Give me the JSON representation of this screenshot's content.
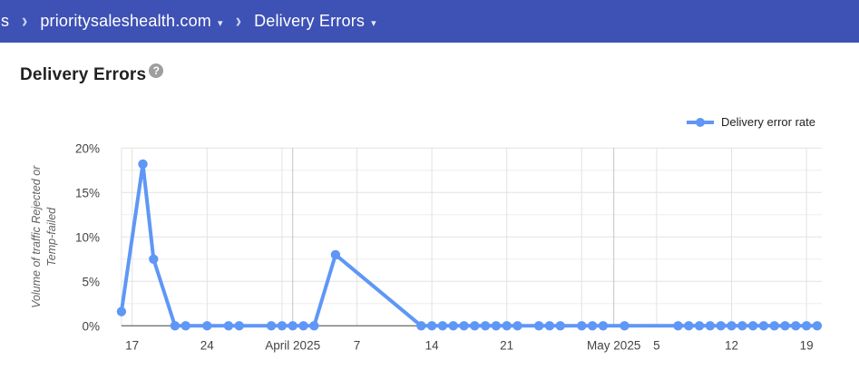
{
  "header": {
    "bg_color": "#3e51b5",
    "truncated_crumb": "s",
    "separator": "›",
    "domain_crumb": "prioritysaleshealth.com",
    "page_crumb": "Delivery Errors",
    "caret": "▾"
  },
  "title": {
    "text": "Delivery Errors",
    "help_icon": "?"
  },
  "legend": {
    "label": "Delivery error rate",
    "color": "#5e97f6"
  },
  "chart_data": {
    "type": "line",
    "title": "Delivery Errors",
    "series_name": "Delivery error rate",
    "line_color": "#5e97f6",
    "ylabel": "Volume of traffic Rejected or Temp-failed",
    "ylabel_lines": [
      "Volume of traffic Rejected or",
      "Temp-failed"
    ],
    "ylim": [
      0,
      20
    ],
    "y_major_step": 5,
    "y_minor_step": 2.5,
    "yticks": [
      "0%",
      "5%",
      "10%",
      "15%",
      "20%"
    ],
    "grid": true,
    "legend_position": "top-right",
    "x_range": [
      "2025-03-16",
      "2025-05-21"
    ],
    "xticks": [
      {
        "date": "2025-03-17",
        "label": "17",
        "month": false
      },
      {
        "date": "2025-03-24",
        "label": "24",
        "month": false
      },
      {
        "date": "2025-03-31",
        "label": "",
        "month": false
      },
      {
        "date": "2025-04-01",
        "label": "April 2025",
        "month": true
      },
      {
        "date": "2025-04-07",
        "label": "7",
        "month": false
      },
      {
        "date": "2025-04-14",
        "label": "14",
        "month": false
      },
      {
        "date": "2025-04-21",
        "label": "21",
        "month": false
      },
      {
        "date": "2025-04-28",
        "label": "",
        "month": false
      },
      {
        "date": "2025-05-01",
        "label": "May 2025",
        "month": true
      },
      {
        "date": "2025-05-05",
        "label": "5",
        "month": false
      },
      {
        "date": "2025-05-12",
        "label": "12",
        "month": false
      },
      {
        "date": "2025-05-19",
        "label": "19",
        "month": false
      }
    ],
    "points": [
      [
        "2025-03-16",
        1.6
      ],
      [
        "2025-03-18",
        18.2
      ],
      [
        "2025-03-19",
        7.5
      ],
      [
        "2025-03-21",
        0
      ],
      [
        "2025-03-22",
        0
      ],
      [
        "2025-03-24",
        0
      ],
      [
        "2025-03-26",
        0
      ],
      [
        "2025-03-27",
        0
      ],
      [
        "2025-03-30",
        0
      ],
      [
        "2025-03-31",
        0
      ],
      [
        "2025-04-01",
        0
      ],
      [
        "2025-04-02",
        0
      ],
      [
        "2025-04-03",
        0
      ],
      [
        "2025-04-05",
        8
      ],
      [
        "2025-04-13",
        0
      ],
      [
        "2025-04-14",
        0
      ],
      [
        "2025-04-15",
        0
      ],
      [
        "2025-04-16",
        0
      ],
      [
        "2025-04-17",
        0
      ],
      [
        "2025-04-18",
        0
      ],
      [
        "2025-04-19",
        0
      ],
      [
        "2025-04-20",
        0
      ],
      [
        "2025-04-21",
        0
      ],
      [
        "2025-04-22",
        0
      ],
      [
        "2025-04-24",
        0
      ],
      [
        "2025-04-25",
        0
      ],
      [
        "2025-04-26",
        0
      ],
      [
        "2025-04-28",
        0
      ],
      [
        "2025-04-29",
        0
      ],
      [
        "2025-04-30",
        0
      ],
      [
        "2025-05-02",
        0
      ],
      [
        "2025-05-07",
        0
      ],
      [
        "2025-05-08",
        0
      ],
      [
        "2025-05-09",
        0
      ],
      [
        "2025-05-10",
        0
      ],
      [
        "2025-05-11",
        0
      ],
      [
        "2025-05-12",
        0
      ],
      [
        "2025-05-13",
        0
      ],
      [
        "2025-05-14",
        0
      ],
      [
        "2025-05-15",
        0
      ],
      [
        "2025-05-16",
        0
      ],
      [
        "2025-05-17",
        0
      ],
      [
        "2025-05-18",
        0
      ],
      [
        "2025-05-19",
        0
      ],
      [
        "2025-05-20",
        0
      ]
    ],
    "colors": {
      "grid_major": "#e2e2e2",
      "grid_minor": "#eeeeee",
      "grid_month": "#c4c4c4",
      "axis_line": "#424242",
      "tick_label": "#444444",
      "axis_title": "#616161"
    }
  }
}
